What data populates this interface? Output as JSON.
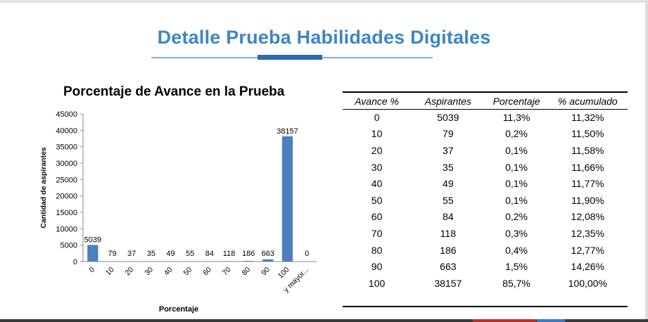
{
  "page": {
    "title": "Detalle Prueba Habilidades Digitales"
  },
  "chart_data": {
    "type": "bar",
    "title": "Porcentaje de Avance en la Prueba",
    "xlabel": "Porcentaje",
    "ylabel": "Cantidad de aspirantes",
    "categories": [
      "0",
      "10",
      "20",
      "30",
      "40",
      "50",
      "60",
      "70",
      "80",
      "90",
      "100",
      "y mayor..."
    ],
    "values": [
      5039,
      79,
      37,
      35,
      49,
      55,
      84,
      118,
      186,
      663,
      38157,
      0
    ],
    "ylim": [
      0,
      45000
    ],
    "yticks": [
      "0",
      "5000",
      "10000",
      "15000",
      "20000",
      "25000",
      "30000",
      "35000",
      "40000",
      "45000"
    ],
    "grid": false,
    "bar_color": "#4a7fc1"
  },
  "table": {
    "headers": [
      "Avance %",
      "Aspirantes",
      "Porcentaje",
      "% acumulado"
    ],
    "rows": [
      [
        "0",
        "5039",
        "11,3%",
        "11,32%"
      ],
      [
        "10",
        "79",
        "0,2%",
        "11,50%"
      ],
      [
        "20",
        "37",
        "0,1%",
        "11,58%"
      ],
      [
        "30",
        "35",
        "0,1%",
        "11,66%"
      ],
      [
        "40",
        "49",
        "0,1%",
        "11,77%"
      ],
      [
        "50",
        "55",
        "0,1%",
        "11,90%"
      ],
      [
        "60",
        "84",
        "0,2%",
        "12,08%"
      ],
      [
        "70",
        "118",
        "0,3%",
        "12,35%"
      ],
      [
        "80",
        "186",
        "0,4%",
        "12,77%"
      ],
      [
        "90",
        "663",
        "1,5%",
        "14,26%"
      ],
      [
        "100",
        "38157",
        "85,7%",
        "100,00%"
      ]
    ]
  }
}
